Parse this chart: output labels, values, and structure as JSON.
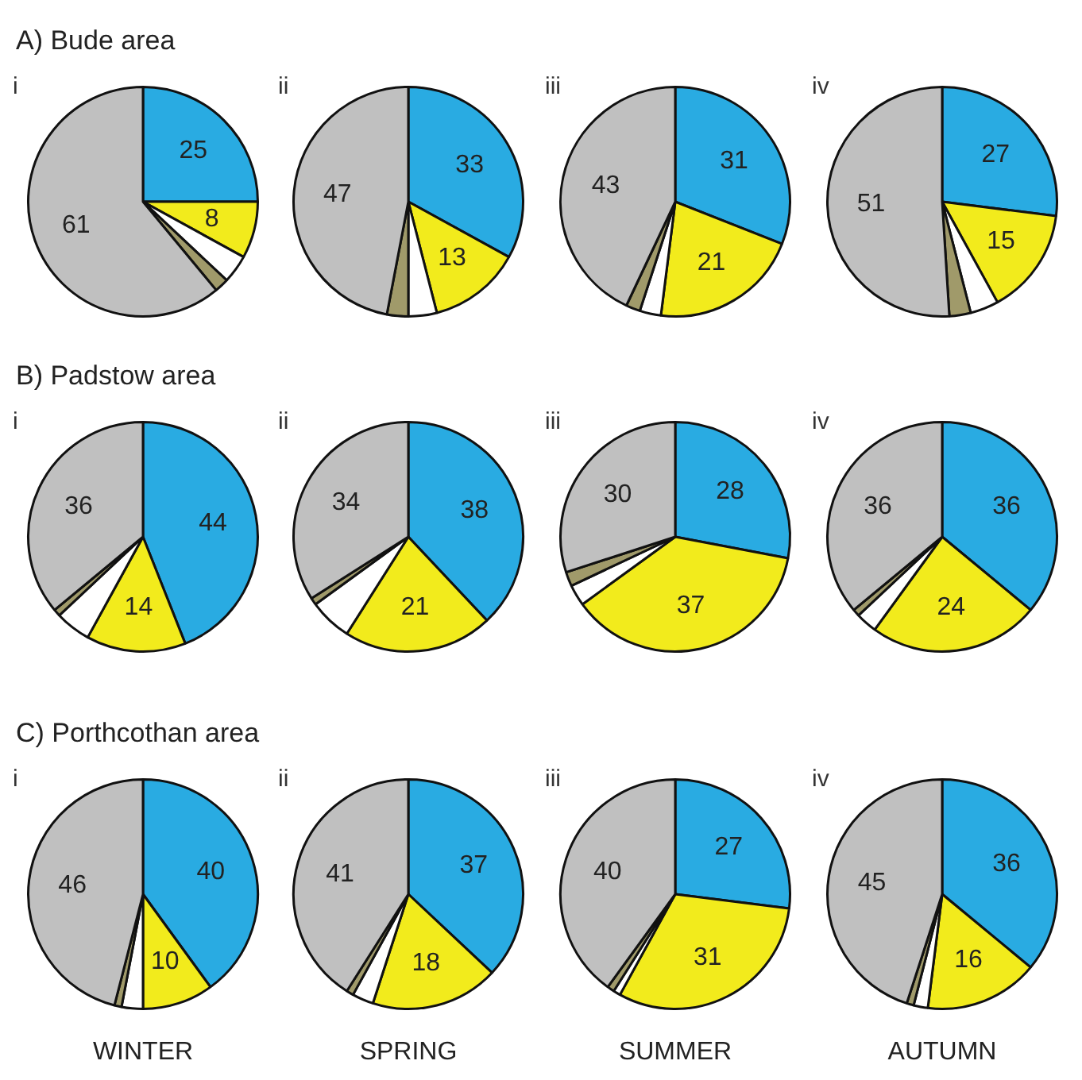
{
  "chart_data": [
    {
      "type": "pie",
      "annotations": [
        "A) Bude area"
      ],
      "title": "i",
      "categories": [
        null,
        null,
        null,
        null,
        null
      ],
      "values": [
        25,
        8,
        4,
        2,
        61
      ],
      "value_labels": [
        "25",
        "8",
        null,
        null,
        "61"
      ],
      "colors": [
        "#29abe2",
        "#f2eb1c",
        "#ffffff",
        "#a09a6a",
        "#c0c0c0"
      ]
    },
    {
      "type": "pie",
      "title": "ii",
      "categories": [
        null,
        null,
        null,
        null,
        null
      ],
      "values": [
        33,
        13,
        4,
        3,
        47
      ],
      "value_labels": [
        "33",
        "13",
        null,
        null,
        "47"
      ],
      "colors": [
        "#29abe2",
        "#f2eb1c",
        "#ffffff",
        "#a09a6a",
        "#c0c0c0"
      ]
    },
    {
      "type": "pie",
      "title": "iii",
      "categories": [
        null,
        null,
        null,
        null,
        null
      ],
      "values": [
        31,
        21,
        3,
        2,
        43
      ],
      "value_labels": [
        "31",
        "21",
        null,
        null,
        "43"
      ],
      "colors": [
        "#29abe2",
        "#f2eb1c",
        "#ffffff",
        "#a09a6a",
        "#c0c0c0"
      ]
    },
    {
      "type": "pie",
      "title": "iv",
      "categories": [
        null,
        null,
        null,
        null,
        null
      ],
      "values": [
        27,
        15,
        4,
        3,
        51
      ],
      "value_labels": [
        "27",
        "15",
        null,
        null,
        "51"
      ],
      "colors": [
        "#29abe2",
        "#f2eb1c",
        "#ffffff",
        "#a09a6a",
        "#c0c0c0"
      ]
    },
    {
      "type": "pie",
      "annotations": [
        "B) Padstow area"
      ],
      "title": "i",
      "categories": [
        null,
        null,
        null,
        null,
        null
      ],
      "values": [
        44,
        14,
        5,
        1,
        36
      ],
      "value_labels": [
        "44",
        "14",
        null,
        null,
        "36"
      ],
      "colors": [
        "#29abe2",
        "#f2eb1c",
        "#ffffff",
        "#a09a6a",
        "#c0c0c0"
      ]
    },
    {
      "type": "pie",
      "title": "ii",
      "categories": [
        null,
        null,
        null,
        null,
        null
      ],
      "values": [
        38,
        21,
        6,
        1,
        34
      ],
      "value_labels": [
        "38",
        "21",
        null,
        null,
        "34"
      ],
      "colors": [
        "#29abe2",
        "#f2eb1c",
        "#ffffff",
        "#a09a6a",
        "#c0c0c0"
      ]
    },
    {
      "type": "pie",
      "title": "iii",
      "categories": [
        null,
        null,
        null,
        null,
        null
      ],
      "values": [
        28,
        37,
        3,
        2,
        30
      ],
      "value_labels": [
        "28",
        "37",
        null,
        null,
        "30"
      ],
      "colors": [
        "#29abe2",
        "#f2eb1c",
        "#ffffff",
        "#a09a6a",
        "#c0c0c0"
      ]
    },
    {
      "type": "pie",
      "title": "iv",
      "categories": [
        null,
        null,
        null,
        null,
        null
      ],
      "values": [
        36,
        24,
        3,
        1,
        36
      ],
      "value_labels": [
        "36",
        "24",
        null,
        null,
        "36"
      ],
      "colors": [
        "#29abe2",
        "#f2eb1c",
        "#ffffff",
        "#a09a6a",
        "#c0c0c0"
      ]
    },
    {
      "type": "pie",
      "annotations": [
        "C) Porthcothan area"
      ],
      "title": "i",
      "xlabel": "WINTER",
      "categories": [
        null,
        null,
        null,
        null,
        null
      ],
      "values": [
        40,
        10,
        3,
        1,
        46
      ],
      "value_labels": [
        "40",
        "10",
        null,
        null,
        "46"
      ],
      "colors": [
        "#29abe2",
        "#f2eb1c",
        "#ffffff",
        "#a09a6a",
        "#c0c0c0"
      ]
    },
    {
      "type": "pie",
      "title": "ii",
      "xlabel": "SPRING",
      "categories": [
        null,
        null,
        null,
        null,
        null
      ],
      "values": [
        37,
        18,
        3,
        1,
        41
      ],
      "value_labels": [
        "37",
        "18",
        null,
        null,
        "41"
      ],
      "colors": [
        "#29abe2",
        "#f2eb1c",
        "#ffffff",
        "#a09a6a",
        "#c0c0c0"
      ]
    },
    {
      "type": "pie",
      "title": "iii",
      "xlabel": "SUMMER",
      "categories": [
        null,
        null,
        null,
        null,
        null
      ],
      "values": [
        27,
        31,
        1,
        1,
        40
      ],
      "value_labels": [
        "27",
        "31",
        null,
        null,
        "40"
      ],
      "colors": [
        "#29abe2",
        "#f2eb1c",
        "#ffffff",
        "#a09a6a",
        "#c0c0c0"
      ]
    },
    {
      "type": "pie",
      "title": "iv",
      "xlabel": "AUTUMN",
      "categories": [
        null,
        null,
        null,
        null,
        null
      ],
      "values": [
        36,
        16,
        2,
        1,
        45
      ],
      "value_labels": [
        "36",
        "16",
        null,
        null,
        "45"
      ],
      "colors": [
        "#29abe2",
        "#f2eb1c",
        "#ffffff",
        "#a09a6a",
        "#c0c0c0"
      ]
    }
  ]
}
